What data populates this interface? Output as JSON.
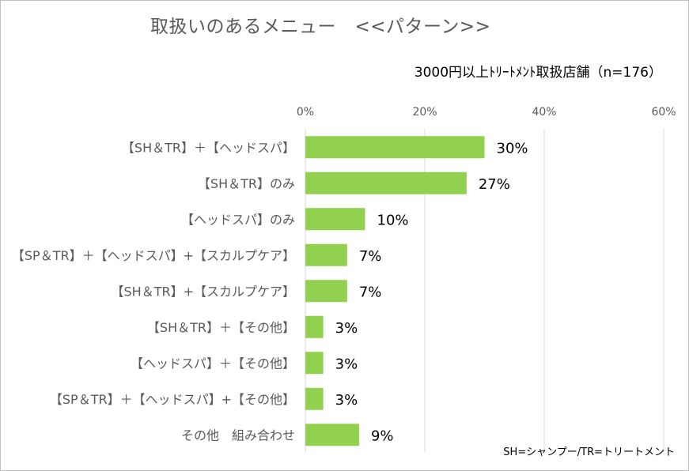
{
  "title": "取扱いのあるメニュー　<<パターン>>",
  "subtitle": "3000円以上ﾄﾘｰﾄﾒﾝﾄ取扱店舗（n=176）",
  "footnote": "SH=シャンプー/TR=トリートメント",
  "colors": {
    "bar": "#92d050",
    "grid": "#d9d9d9",
    "axis_text": "#595959",
    "category_text": "#595959",
    "value_text": "#000000"
  },
  "chart_data": {
    "type": "bar",
    "orientation": "horizontal",
    "categories": [
      "【SH＆TR】＋【ヘッドスパ】",
      "【SH＆TR】のみ",
      "【ヘッドスパ】のみ",
      "【SP＆TR】＋【ヘッドスパ】+【スカルプケア】",
      "【SH＆TR】+【スカルプケア】",
      "【SH＆TR】＋【その他】",
      "【ヘッドスパ】＋【その他】",
      "【SP＆TR】＋【ヘッドスパ】+【その他】",
      "その他　組み合わせ"
    ],
    "values": [
      30,
      27,
      10,
      7,
      7,
      3,
      3,
      3,
      9
    ],
    "value_labels": [
      "30%",
      "27%",
      "10%",
      "7%",
      "7%",
      "3%",
      "3%",
      "3%",
      "9%"
    ],
    "xlim": [
      0,
      60
    ],
    "ticks": [
      0,
      20,
      40,
      60
    ],
    "tick_labels": [
      "0%",
      "20%",
      "40%",
      "60%"
    ],
    "axis_position": "top",
    "grid": true
  }
}
